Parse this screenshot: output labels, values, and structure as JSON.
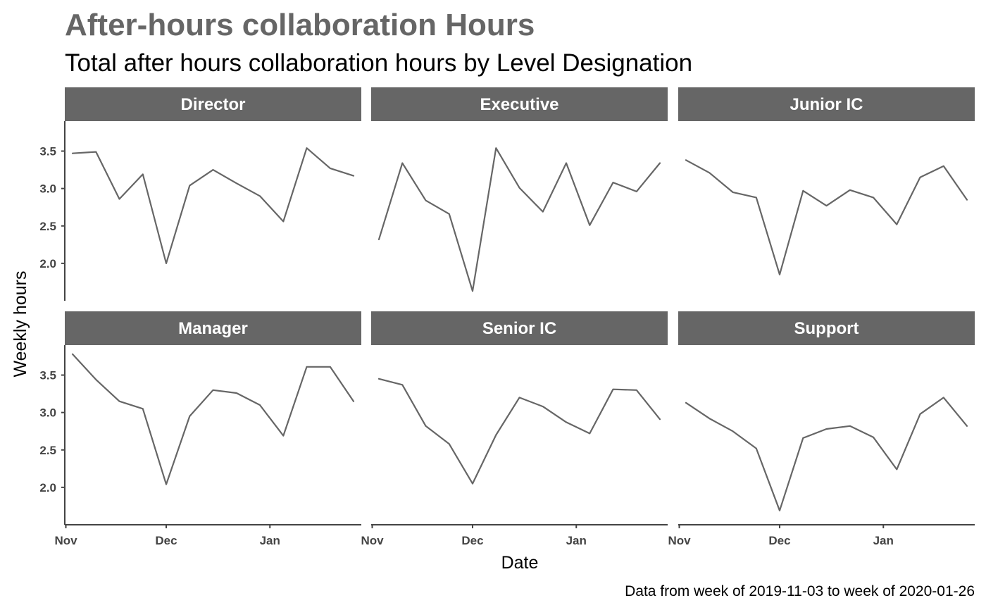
{
  "chart_data": {
    "type": "line",
    "title": "After-hours collaboration Hours",
    "subtitle": "Total after hours collaboration hours by Level Designation",
    "xlabel": "Date",
    "ylabel": "Weekly hours",
    "caption": "Data from week of 2019-11-03 to week of 2020-01-26",
    "x": [
      "2019-11-03",
      "2019-11-10",
      "2019-11-17",
      "2019-11-24",
      "2019-12-01",
      "2019-12-08",
      "2019-12-15",
      "2019-12-22",
      "2019-12-29",
      "2020-01-05",
      "2020-01-12",
      "2020-01-19",
      "2020-01-26"
    ],
    "x_ticks": [
      "Nov",
      "Dec",
      "Jan"
    ],
    "y_ticks": [
      "2.0",
      "2.5",
      "3.0",
      "3.5"
    ],
    "ylim": [
      1.5,
      3.9
    ],
    "grid": false,
    "legend": "none",
    "series": [
      {
        "name": "Director",
        "values": [
          3.47,
          3.49,
          2.86,
          3.19,
          2.0,
          3.04,
          3.25,
          3.07,
          2.9,
          2.56,
          3.54,
          3.27,
          3.17
        ]
      },
      {
        "name": "Executive",
        "values": [
          2.32,
          3.34,
          2.84,
          2.66,
          1.63,
          3.54,
          3.01,
          2.69,
          3.34,
          2.51,
          3.08,
          2.96,
          3.34
        ]
      },
      {
        "name": "Junior IC",
        "values": [
          3.38,
          3.21,
          2.95,
          2.88,
          1.85,
          2.97,
          2.77,
          2.98,
          2.88,
          2.52,
          3.15,
          3.3,
          2.85
        ]
      },
      {
        "name": "Manager",
        "values": [
          3.78,
          3.44,
          3.15,
          3.05,
          2.04,
          2.95,
          3.3,
          3.26,
          3.1,
          2.69,
          3.61,
          3.61,
          3.15
        ]
      },
      {
        "name": "Senior IC",
        "values": [
          3.45,
          3.37,
          2.82,
          2.58,
          2.05,
          2.7,
          3.2,
          3.08,
          2.87,
          2.72,
          3.31,
          3.3,
          2.91
        ]
      },
      {
        "name": "Support",
        "values": [
          3.13,
          2.92,
          2.75,
          2.52,
          1.69,
          2.66,
          2.78,
          2.82,
          2.67,
          2.24,
          2.98,
          3.2,
          2.82
        ]
      }
    ],
    "colors": {
      "line": "#666666",
      "strip": "#666666",
      "axis": "#444444",
      "title": "#666666"
    }
  }
}
